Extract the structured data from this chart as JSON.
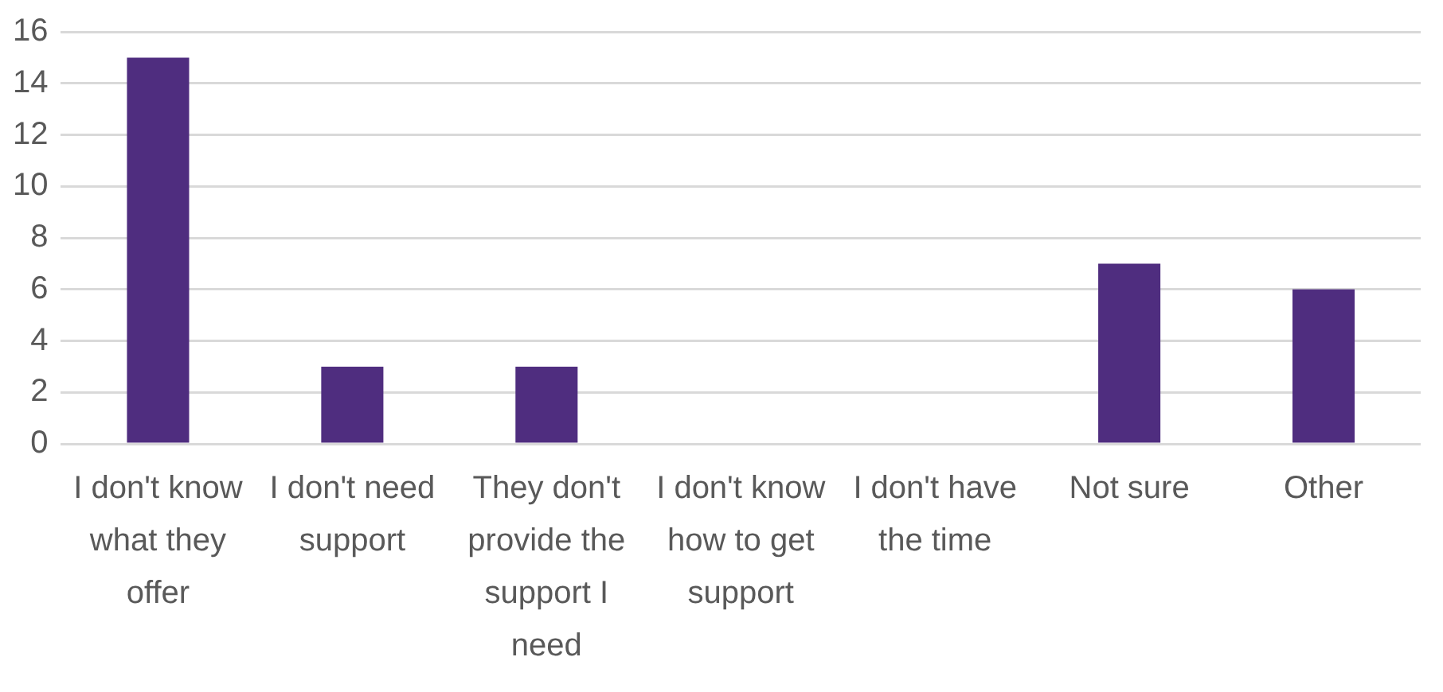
{
  "chart_data": {
    "type": "bar",
    "categories": [
      "I don't know what they offer",
      "I don't need support",
      "They don't provide the support I need",
      "I don't know how to get support",
      "I don't have the time",
      "Not sure",
      "Other"
    ],
    "values": [
      15,
      3,
      3,
      0,
      0,
      7,
      6
    ],
    "color": "#4f2d7f",
    "ylim": [
      0,
      16
    ],
    "yticks": [
      0,
      2,
      4,
      6,
      8,
      10,
      12,
      14,
      16
    ],
    "grid": "y",
    "legend": false
  }
}
